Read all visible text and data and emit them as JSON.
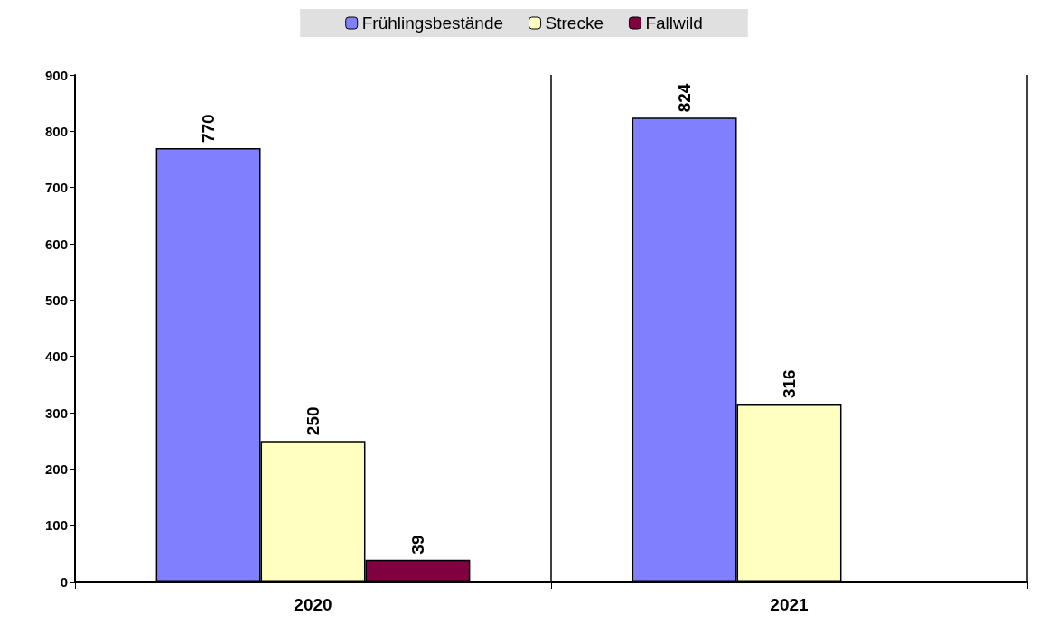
{
  "chart_data": {
    "type": "bar",
    "categories": [
      "2020",
      "2021"
    ],
    "series": [
      {
        "name": "Frühlingsbestände",
        "color": "#8080ff",
        "values": [
          770,
          824
        ]
      },
      {
        "name": "Strecke",
        "color": "#ffffc0",
        "values": [
          250,
          316
        ]
      },
      {
        "name": "Fallwild",
        "color": "#800040",
        "values": [
          39,
          null
        ]
      }
    ],
    "ylim": [
      0,
      900
    ],
    "yticks": [
      0,
      100,
      200,
      300,
      400,
      500,
      600,
      700,
      800,
      900
    ],
    "data_labels": true,
    "grid": "x",
    "legend": "top"
  }
}
